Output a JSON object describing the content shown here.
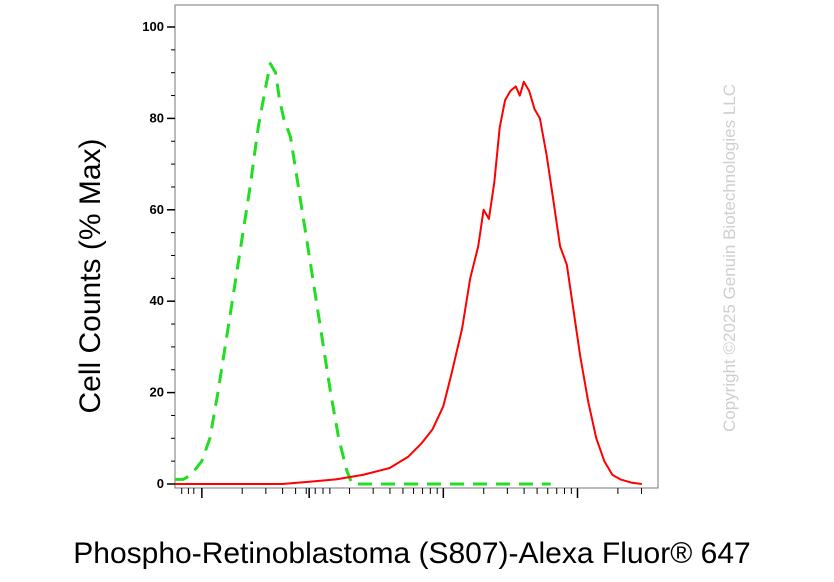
{
  "chart_data": {
    "type": "line",
    "xlabel": "Phospho-Retinoblastoma (S807)-Alexa Fluor® 647",
    "ylabel": "Cell Counts (% Max)",
    "ylim": [
      0,
      105
    ],
    "xscale": "log",
    "yticks": [
      0,
      20,
      40,
      60,
      80,
      100
    ],
    "xtick_labels_shown": false,
    "grid": false,
    "legend": "none",
    "watermark": "Copyright ©2025 Genuin Biotechnologies LLC",
    "series": [
      {
        "style": "dashed",
        "color": "#22dd22",
        "points": [
          [
            0.0,
            1
          ],
          [
            0.3,
            1
          ],
          [
            0.6,
            2
          ],
          [
            1.0,
            5
          ],
          [
            1.3,
            10
          ],
          [
            1.6,
            20
          ],
          [
            2.0,
            35
          ],
          [
            2.4,
            50
          ],
          [
            2.8,
            65
          ],
          [
            3.1,
            78
          ],
          [
            3.35,
            86
          ],
          [
            3.55,
            92
          ],
          [
            3.75,
            90
          ],
          [
            3.9,
            84
          ],
          [
            4.05,
            80
          ],
          [
            4.3,
            76
          ],
          [
            4.6,
            65
          ],
          [
            5.0,
            50
          ],
          [
            5.4,
            35
          ],
          [
            5.8,
            20
          ],
          [
            6.1,
            10
          ],
          [
            6.4,
            3
          ],
          [
            6.6,
            0
          ],
          [
            14.0,
            0
          ]
        ]
      },
      {
        "style": "solid",
        "color": "#ff0000",
        "points": [
          [
            0.0,
            0
          ],
          [
            4.0,
            0
          ],
          [
            5.0,
            0.5
          ],
          [
            6.0,
            1
          ],
          [
            7.0,
            2
          ],
          [
            8.0,
            3.5
          ],
          [
            8.7,
            6
          ],
          [
            9.2,
            9
          ],
          [
            9.6,
            12
          ],
          [
            10.0,
            17
          ],
          [
            10.3,
            24
          ],
          [
            10.7,
            34
          ],
          [
            11.0,
            45
          ],
          [
            11.3,
            52
          ],
          [
            11.5,
            60
          ],
          [
            11.7,
            58
          ],
          [
            11.9,
            66
          ],
          [
            12.1,
            78
          ],
          [
            12.3,
            84
          ],
          [
            12.5,
            86
          ],
          [
            12.7,
            87
          ],
          [
            12.85,
            85
          ],
          [
            13.0,
            88
          ],
          [
            13.2,
            86
          ],
          [
            13.4,
            82
          ],
          [
            13.6,
            80
          ],
          [
            13.85,
            72
          ],
          [
            14.1,
            62
          ],
          [
            14.35,
            52
          ],
          [
            14.6,
            48
          ],
          [
            14.85,
            38
          ],
          [
            15.1,
            28
          ],
          [
            15.4,
            18
          ],
          [
            15.7,
            10
          ],
          [
            16.0,
            5
          ],
          [
            16.3,
            2
          ],
          [
            16.6,
            1
          ],
          [
            17.0,
            0.3
          ],
          [
            17.4,
            0
          ]
        ]
      }
    ]
  }
}
